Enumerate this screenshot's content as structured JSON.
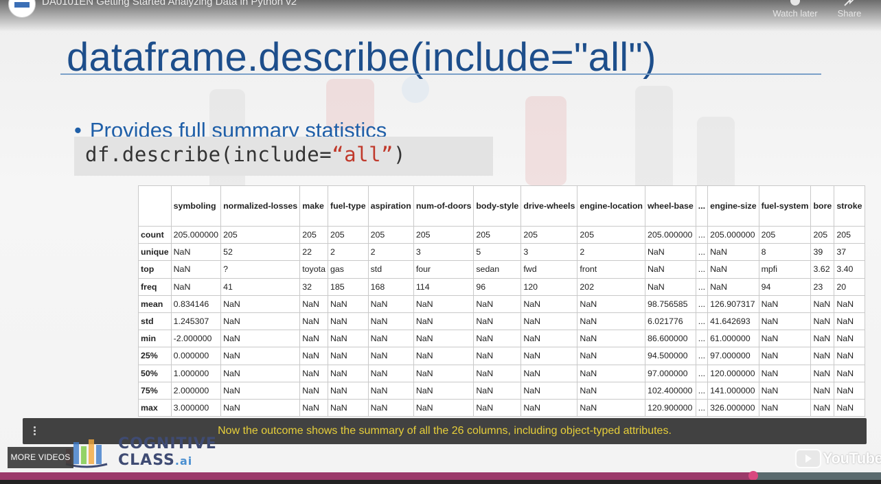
{
  "player": {
    "video_title": "DA0101EN Getting Started Analyzing Data in Python v2",
    "watch_later_label": "Watch later",
    "share_label": "Share",
    "more_videos_label": "MORE VIDEOS",
    "youtube_logo_text": "YouTube",
    "progress_fraction": 0.855,
    "accent_color": "#d9487f"
  },
  "slide": {
    "title": "dataframe.describe(include=\"all\")",
    "bullet": "Provides full summary statistics",
    "code_prefix": "df.describe(include=",
    "code_string": "“all”",
    "code_suffix": ")"
  },
  "table": {
    "columns": [
      "",
      "symboling",
      "normalized-losses",
      "make",
      "fuel-type",
      "aspiration",
      "num-of-doors",
      "body-style",
      "drive-wheels",
      "engine-location",
      "wheel-base",
      "...",
      "engine-size",
      "fuel-system",
      "bore",
      "stroke"
    ],
    "rows": [
      [
        "count",
        "205.000000",
        "205",
        "205",
        "205",
        "205",
        "205",
        "205",
        "205",
        "205",
        "205.000000",
        "...",
        "205.000000",
        "205",
        "205",
        "205"
      ],
      [
        "unique",
        "NaN",
        "52",
        "22",
        "2",
        "2",
        "3",
        "5",
        "3",
        "2",
        "NaN",
        "...",
        "NaN",
        "8",
        "39",
        "37"
      ],
      [
        "top",
        "NaN",
        "?",
        "toyota",
        "gas",
        "std",
        "four",
        "sedan",
        "fwd",
        "front",
        "NaN",
        "...",
        "NaN",
        "mpfi",
        "3.62",
        "3.40"
      ],
      [
        "freq",
        "NaN",
        "41",
        "32",
        "185",
        "168",
        "114",
        "96",
        "120",
        "202",
        "NaN",
        "...",
        "NaN",
        "94",
        "23",
        "20"
      ],
      [
        "mean",
        "0.834146",
        "NaN",
        "NaN",
        "NaN",
        "NaN",
        "NaN",
        "NaN",
        "NaN",
        "NaN",
        "98.756585",
        "...",
        "126.907317",
        "NaN",
        "NaN",
        "NaN"
      ],
      [
        "std",
        "1.245307",
        "NaN",
        "NaN",
        "NaN",
        "NaN",
        "NaN",
        "NaN",
        "NaN",
        "NaN",
        "6.021776",
        "...",
        "41.642693",
        "NaN",
        "NaN",
        "NaN"
      ],
      [
        "min",
        "-2.000000",
        "NaN",
        "NaN",
        "NaN",
        "NaN",
        "NaN",
        "NaN",
        "NaN",
        "NaN",
        "86.600000",
        "...",
        "61.000000",
        "NaN",
        "NaN",
        "NaN"
      ],
      [
        "25%",
        "0.000000",
        "NaN",
        "NaN",
        "NaN",
        "NaN",
        "NaN",
        "NaN",
        "NaN",
        "NaN",
        "94.500000",
        "...",
        "97.000000",
        "NaN",
        "NaN",
        "NaN"
      ],
      [
        "50%",
        "1.000000",
        "NaN",
        "NaN",
        "NaN",
        "NaN",
        "NaN",
        "NaN",
        "NaN",
        "NaN",
        "97.000000",
        "...",
        "120.000000",
        "NaN",
        "NaN",
        "NaN"
      ],
      [
        "75%",
        "2.000000",
        "NaN",
        "NaN",
        "NaN",
        "NaN",
        "NaN",
        "NaN",
        "NaN",
        "NaN",
        "102.400000",
        "...",
        "141.000000",
        "NaN",
        "NaN",
        "NaN"
      ],
      [
        "max",
        "3.000000",
        "NaN",
        "NaN",
        "NaN",
        "NaN",
        "NaN",
        "NaN",
        "NaN",
        "NaN",
        "120.900000",
        "...",
        "326.000000",
        "NaN",
        "NaN",
        "NaN"
      ]
    ]
  },
  "caption": {
    "text": "Now the outcome shows the summary of all the 26 columns, including object-typed attributes.",
    "color": "#e7cf3a"
  },
  "branding": {
    "logo_line1": "COGNITIVE",
    "logo_line2": "CLASS",
    "logo_suffix": ".ai",
    "icons": [
      "cognitive-class-logo-icon",
      "youtube-play-icon",
      "clock-icon",
      "share-arrow-icon",
      "more-vertical-icon"
    ]
  }
}
